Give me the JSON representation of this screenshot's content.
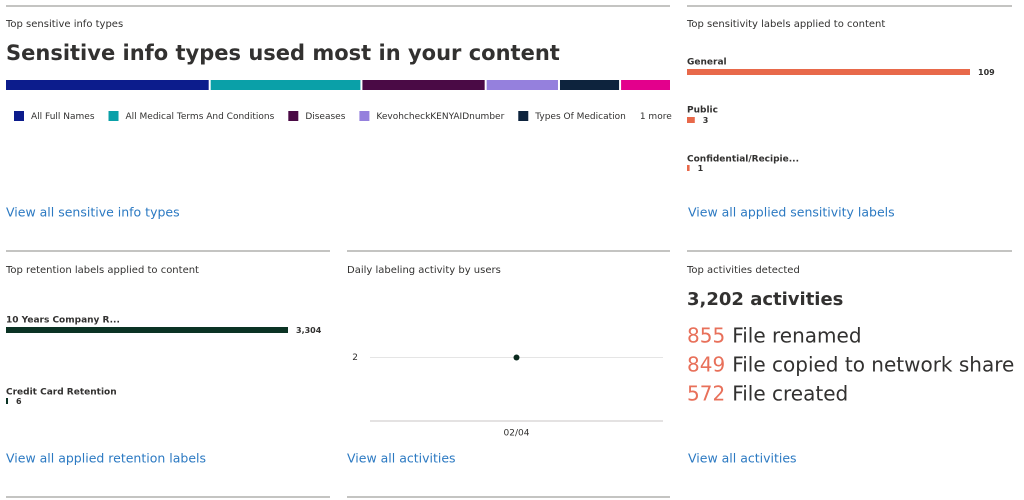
{
  "sensitive_info": {
    "header": "Top sensitive info types",
    "chart": {
      "type": "stacked-bar",
      "title": "Sensitive info types used most in your content",
      "series": [
        {
          "name": "All Full Names",
          "color": "#0c1c8c",
          "values": [
            201
          ]
        },
        {
          "name": "All Medical Terms And Conditions",
          "color": "#0aa0a8",
          "values": [
            149
          ]
        },
        {
          "name": "Diseases",
          "color": "#4a0a45",
          "values": [
            122
          ]
        },
        {
          "name": "KevohcheckKENYAIDnumber",
          "color": "#9580dd",
          "values": [
            72
          ]
        },
        {
          "name": "Types Of Medication",
          "color": "#0d233d",
          "values": [
            60
          ]
        },
        {
          "name": null,
          "color": "#e3008c",
          "values": [
            50
          ]
        }
      ],
      "more_label": "1 more"
    },
    "link": "View all sensitive info types"
  },
  "sensitivity_labels": {
    "header": "Top sensitivity labels applied to content",
    "chart": {
      "type": "hbar",
      "color": "#e8694a",
      "categories": [
        "General",
        "Public",
        "Confidential/Recipie..."
      ],
      "values": [
        109,
        3,
        1
      ]
    },
    "link": "View all applied sensitivity labels"
  },
  "retention_labels": {
    "header": "Top retention labels applied to content",
    "chart": {
      "type": "hbar",
      "color": "#0b3324",
      "categories": [
        "10 Years Company R...",
        "Credit Card Retention"
      ],
      "values": [
        3304,
        6
      ],
      "value_labels": [
        "3,304",
        "6"
      ]
    },
    "link": "View all applied retention labels"
  },
  "labeling_activity": {
    "header": "Daily labeling activity by users",
    "chart": {
      "type": "line",
      "categories": [
        "02/04"
      ],
      "values": [
        2
      ],
      "color": "#0b2a1e",
      "ylim": [
        1,
        3
      ],
      "yticks": [
        2
      ],
      "grid": true
    },
    "link": "View all activities"
  },
  "activities": {
    "header": "Top activities detected",
    "total": "3,202 activities",
    "items": [
      {
        "count": 855,
        "label": "File renamed"
      },
      {
        "count": 849,
        "label": "File copied to network share"
      },
      {
        "count": 572,
        "label": "File created"
      }
    ],
    "link": "View all activities"
  }
}
